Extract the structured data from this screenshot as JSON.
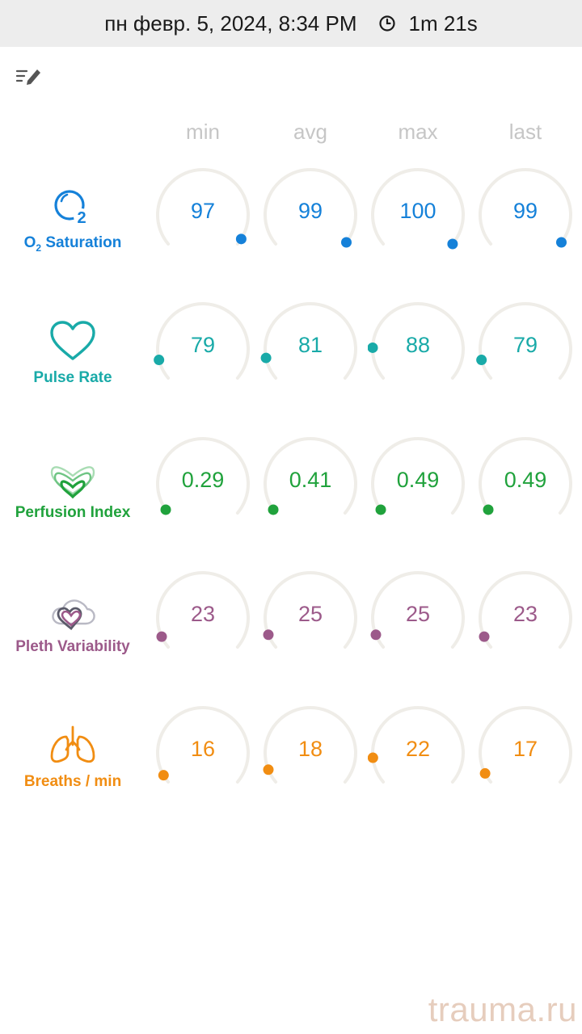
{
  "status_bar": {
    "datetime": "пн февр. 5, 2024, 8:34 PM",
    "duration": "1m 21s",
    "clock_icon": "clock-icon"
  },
  "toolbar": {
    "edit_icon": "edit-list-icon"
  },
  "columns": [
    "min",
    "avg",
    "max",
    "last"
  ],
  "metrics": [
    {
      "key": "spo2",
      "label_main": "O",
      "label_sub": "2",
      "label_rest": " Saturation",
      "color": "#1581d9",
      "icon": "o2-icon",
      "values": [
        "97",
        "99",
        "100",
        "99"
      ],
      "levels": [
        0.97,
        0.99,
        1.0,
        0.99
      ]
    },
    {
      "key": "pr",
      "label": "Pulse Rate",
      "color": "#19aaa8",
      "icon": "heart-icon",
      "values": [
        "79",
        "81",
        "88",
        "79"
      ],
      "levels": [
        0.1,
        0.11,
        0.16,
        0.1
      ]
    },
    {
      "key": "pi",
      "label": "Perfusion Index",
      "color": "#20a23c",
      "icon": "perfusion-icon",
      "values": [
        "0.29",
        "0.41",
        "0.49",
        "0.49"
      ],
      "levels": [
        0.02,
        0.02,
        0.02,
        0.02
      ]
    },
    {
      "key": "pvi",
      "label": "Pleth Variability",
      "color": "#9c5a8a",
      "icon": "pleth-icon",
      "values": [
        "23",
        "25",
        "25",
        "23"
      ],
      "levels": [
        0.06,
        0.07,
        0.07,
        0.06
      ]
    },
    {
      "key": "rr",
      "label": "Breaths / min",
      "color": "#f18d12",
      "icon": "lungs-icon",
      "values": [
        "16",
        "18",
        "22",
        "17"
      ],
      "levels": [
        0.04,
        0.07,
        0.13,
        0.05
      ]
    }
  ],
  "watermark": "trauma.ru"
}
